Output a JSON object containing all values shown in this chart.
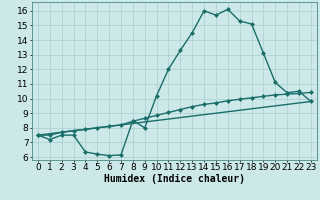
{
  "title": "",
  "xlabel": "Humidex (Indice chaleur)",
  "background_color": "#cce8e8",
  "grid_color": "#aacece",
  "line_color": "#1a6e6a",
  "xlim": [
    -0.5,
    23.5
  ],
  "ylim": [
    5.8,
    16.6
  ],
  "xticks": [
    0,
    1,
    2,
    3,
    4,
    5,
    6,
    7,
    8,
    9,
    10,
    11,
    12,
    13,
    14,
    15,
    16,
    17,
    18,
    19,
    20,
    21,
    22,
    23
  ],
  "yticks": [
    6,
    7,
    8,
    9,
    10,
    11,
    12,
    13,
    14,
    15,
    16
  ],
  "series1_x": [
    0,
    1,
    2,
    3,
    4,
    5,
    6,
    7,
    8,
    9,
    10,
    11,
    12,
    13,
    14,
    15,
    16,
    17,
    18,
    19,
    20,
    21,
    22,
    23
  ],
  "series1_y": [
    7.5,
    7.2,
    7.5,
    7.5,
    6.35,
    6.2,
    6.1,
    6.15,
    8.5,
    8.0,
    10.2,
    12.0,
    13.3,
    14.5,
    16.0,
    15.7,
    16.1,
    15.3,
    15.1,
    13.1,
    11.1,
    10.4,
    10.5,
    9.8
  ],
  "series2_x": [
    0,
    1,
    2,
    3,
    4,
    5,
    6,
    7,
    8,
    9,
    10,
    11,
    12,
    13,
    14,
    15,
    16,
    17,
    18,
    19,
    20,
    21,
    22,
    23
  ],
  "series2_y": [
    7.5,
    7.5,
    7.7,
    7.8,
    7.9,
    8.0,
    8.1,
    8.2,
    8.45,
    8.65,
    8.85,
    9.05,
    9.25,
    9.45,
    9.6,
    9.7,
    9.85,
    9.95,
    10.05,
    10.15,
    10.25,
    10.3,
    10.35,
    10.42
  ],
  "series3_x": [
    0,
    23
  ],
  "series3_y": [
    7.5,
    9.8
  ],
  "marker_size": 2.5,
  "line_width": 1.0,
  "xlabel_fontsize": 7,
  "tick_fontsize": 6.5
}
